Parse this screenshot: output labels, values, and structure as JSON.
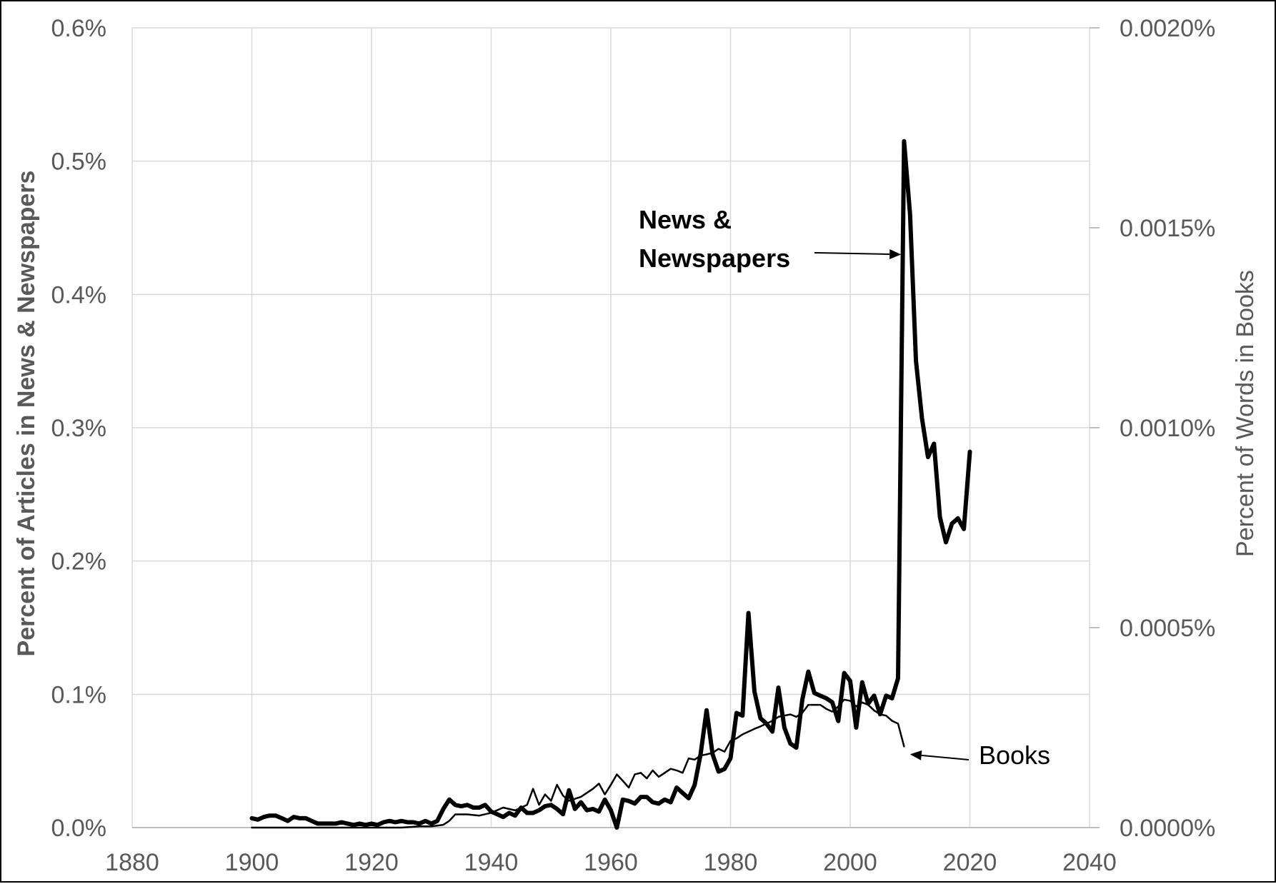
{
  "chart_data": {
    "type": "line",
    "xlim": [
      1880,
      2040
    ],
    "x_ticks": [
      "1880",
      "1900",
      "1920",
      "1940",
      "1960",
      "1980",
      "2000",
      "2020",
      "2040"
    ],
    "x_tick_values": [
      1880,
      1900,
      1920,
      1940,
      1960,
      1980,
      2000,
      2020,
      2040
    ],
    "left_axis": {
      "label": "Percent of Articles in News & Newspapers",
      "ylim": [
        0,
        0.6
      ],
      "ticks": [
        "0.0%",
        "0.1%",
        "0.2%",
        "0.3%",
        "0.4%",
        "0.5%",
        "0.6%"
      ],
      "tick_values": [
        0,
        0.1,
        0.2,
        0.3,
        0.4,
        0.5,
        0.6
      ]
    },
    "right_axis": {
      "label": "Percent of Words in Books",
      "ylim": [
        0,
        0.002
      ],
      "ticks": [
        "0.0000%",
        "0.0005%",
        "0.0010%",
        "0.0015%",
        "0.0020%"
      ],
      "tick_values": [
        0,
        0.0005,
        0.001,
        0.0015,
        0.002
      ]
    },
    "grid": true,
    "series": [
      {
        "name": "News & Newspapers",
        "axis": "left",
        "color": "#000000",
        "style": "thick",
        "points": [
          [
            1900,
            0.007
          ],
          [
            1901,
            0.006
          ],
          [
            1902,
            0.008
          ],
          [
            1903,
            0.009
          ],
          [
            1904,
            0.009
          ],
          [
            1905,
            0.007
          ],
          [
            1906,
            0.005
          ],
          [
            1907,
            0.008
          ],
          [
            1908,
            0.007
          ],
          [
            1909,
            0.007
          ],
          [
            1910,
            0.005
          ],
          [
            1911,
            0.003
          ],
          [
            1912,
            0.003
          ],
          [
            1913,
            0.003
          ],
          [
            1914,
            0.003
          ],
          [
            1915,
            0.004
          ],
          [
            1916,
            0.003
          ],
          [
            1917,
            0.002
          ],
          [
            1918,
            0.003
          ],
          [
            1919,
            0.002
          ],
          [
            1920,
            0.003
          ],
          [
            1921,
            0.002
          ],
          [
            1922,
            0.004
          ],
          [
            1923,
            0.005
          ],
          [
            1924,
            0.004
          ],
          [
            1925,
            0.005
          ],
          [
            1926,
            0.004
          ],
          [
            1927,
            0.004
          ],
          [
            1928,
            0.003
          ],
          [
            1929,
            0.005
          ],
          [
            1930,
            0.003
          ],
          [
            1931,
            0.005
          ],
          [
            1932,
            0.014
          ],
          [
            1933,
            0.021
          ],
          [
            1934,
            0.017
          ],
          [
            1935,
            0.016
          ],
          [
            1936,
            0.017
          ],
          [
            1937,
            0.015
          ],
          [
            1938,
            0.015
          ],
          [
            1939,
            0.017
          ],
          [
            1940,
            0.012
          ],
          [
            1941,
            0.01
          ],
          [
            1942,
            0.008
          ],
          [
            1943,
            0.011
          ],
          [
            1944,
            0.009
          ],
          [
            1945,
            0.015
          ],
          [
            1946,
            0.011
          ],
          [
            1947,
            0.011
          ],
          [
            1948,
            0.013
          ],
          [
            1949,
            0.016
          ],
          [
            1950,
            0.017
          ],
          [
            1951,
            0.014
          ],
          [
            1952,
            0.01
          ],
          [
            1953,
            0.028
          ],
          [
            1954,
            0.014
          ],
          [
            1955,
            0.019
          ],
          [
            1956,
            0.013
          ],
          [
            1957,
            0.014
          ],
          [
            1958,
            0.012
          ],
          [
            1959,
            0.021
          ],
          [
            1960,
            0.013
          ],
          [
            1961,
            0.0
          ],
          [
            1962,
            0.021
          ],
          [
            1963,
            0.02
          ],
          [
            1964,
            0.018
          ],
          [
            1965,
            0.023
          ],
          [
            1966,
            0.023
          ],
          [
            1967,
            0.019
          ],
          [
            1968,
            0.018
          ],
          [
            1969,
            0.021
          ],
          [
            1970,
            0.019
          ],
          [
            1971,
            0.03
          ],
          [
            1972,
            0.026
          ],
          [
            1973,
            0.022
          ],
          [
            1974,
            0.032
          ],
          [
            1975,
            0.055
          ],
          [
            1976,
            0.088
          ],
          [
            1977,
            0.055
          ],
          [
            1978,
            0.042
          ],
          [
            1979,
            0.044
          ],
          [
            1980,
            0.052
          ],
          [
            1981,
            0.086
          ],
          [
            1982,
            0.084
          ],
          [
            1983,
            0.161
          ],
          [
            1984,
            0.102
          ],
          [
            1985,
            0.082
          ],
          [
            1986,
            0.078
          ],
          [
            1987,
            0.072
          ],
          [
            1988,
            0.105
          ],
          [
            1989,
            0.075
          ],
          [
            1990,
            0.063
          ],
          [
            1991,
            0.06
          ],
          [
            1992,
            0.096
          ],
          [
            1993,
            0.117
          ],
          [
            1994,
            0.101
          ],
          [
            1995,
            0.099
          ],
          [
            1996,
            0.097
          ],
          [
            1997,
            0.094
          ],
          [
            1998,
            0.08
          ],
          [
            1999,
            0.116
          ],
          [
            2000,
            0.11
          ],
          [
            2001,
            0.075
          ],
          [
            2002,
            0.109
          ],
          [
            2003,
            0.093
          ],
          [
            2004,
            0.099
          ],
          [
            2005,
            0.085
          ],
          [
            2006,
            0.099
          ],
          [
            2007,
            0.097
          ],
          [
            2008,
            0.112
          ],
          [
            2009,
            0.515
          ],
          [
            2010,
            0.46
          ],
          [
            2011,
            0.35
          ],
          [
            2012,
            0.307
          ],
          [
            2013,
            0.278
          ],
          [
            2014,
            0.288
          ],
          [
            2015,
            0.233
          ],
          [
            2016,
            0.214
          ],
          [
            2017,
            0.228
          ],
          [
            2018,
            0.232
          ],
          [
            2019,
            0.224
          ],
          [
            2020,
            0.282
          ]
        ]
      },
      {
        "name": "Books",
        "axis": "right",
        "color": "#000000",
        "style": "thin",
        "points": [
          [
            1900,
            0.0
          ],
          [
            1905,
            0.0
          ],
          [
            1910,
            0.0
          ],
          [
            1915,
            0.0
          ],
          [
            1920,
            0.0
          ],
          [
            1925,
            0.0
          ],
          [
            1928,
            3e-06
          ],
          [
            1930,
            3e-06
          ],
          [
            1932,
            7e-06
          ],
          [
            1933,
            1.7e-05
          ],
          [
            1934,
            3.3e-05
          ],
          [
            1936,
            3.3e-05
          ],
          [
            1938,
            3e-05
          ],
          [
            1940,
            3.7e-05
          ],
          [
            1942,
            5e-05
          ],
          [
            1944,
            4.3e-05
          ],
          [
            1946,
            5.7e-05
          ],
          [
            1947,
            9.7e-05
          ],
          [
            1948,
            5.7e-05
          ],
          [
            1949,
            8.3e-05
          ],
          [
            1950,
            6.7e-05
          ],
          [
            1951,
            0.000107
          ],
          [
            1952,
            8e-05
          ],
          [
            1953,
            6.7e-05
          ],
          [
            1955,
            7.7e-05
          ],
          [
            1956,
            8.7e-05
          ],
          [
            1957,
            9.7e-05
          ],
          [
            1958,
            0.00011
          ],
          [
            1959,
            8.3e-05
          ],
          [
            1960,
            0.000107
          ],
          [
            1961,
            0.000133
          ],
          [
            1962,
            0.000117
          ],
          [
            1963,
            0.0001
          ],
          [
            1964,
            0.000133
          ],
          [
            1965,
            0.000137
          ],
          [
            1966,
            0.000123
          ],
          [
            1967,
            0.000143
          ],
          [
            1968,
            0.000127
          ],
          [
            1969,
            0.000137
          ],
          [
            1970,
            0.000147
          ],
          [
            1971,
            0.000143
          ],
          [
            1972,
            0.000137
          ],
          [
            1973,
            0.000173
          ],
          [
            1974,
            0.00017
          ],
          [
            1975,
            0.00018
          ],
          [
            1976,
            0.000183
          ],
          [
            1977,
            0.000187
          ],
          [
            1978,
            0.000197
          ],
          [
            1979,
            0.00019
          ],
          [
            1980,
            0.000217
          ],
          [
            1981,
            0.000223
          ],
          [
            1982,
            0.000233
          ],
          [
            1983,
            0.00024
          ],
          [
            1984,
            0.000247
          ],
          [
            1985,
            0.000253
          ],
          [
            1986,
            0.00026
          ],
          [
            1987,
            0.000267
          ],
          [
            1988,
            0.000277
          ],
          [
            1989,
            0.00028
          ],
          [
            1990,
            0.000283
          ],
          [
            1991,
            0.000277
          ],
          [
            1992,
            0.000287
          ],
          [
            1993,
            0.000307
          ],
          [
            1994,
            0.000307
          ],
          [
            1995,
            0.000307
          ],
          [
            1996,
            0.000297
          ],
          [
            1997,
            0.00029
          ],
          [
            1998,
            0.000303
          ],
          [
            1999,
            0.00032
          ],
          [
            2000,
            0.000317
          ],
          [
            2001,
            0.000303
          ],
          [
            2002,
            0.000313
          ],
          [
            2003,
            0.000307
          ],
          [
            2004,
            0.000293
          ],
          [
            2005,
            0.000283
          ],
          [
            2006,
            0.00028
          ],
          [
            2007,
            0.000267
          ],
          [
            2008,
            0.00026
          ],
          [
            2009,
            0.000203
          ]
        ]
      }
    ],
    "annotations": [
      {
        "text_lines": [
          "News &",
          "Newspapers"
        ],
        "points_to": [
          2008.5,
          0.43
        ],
        "series": "News & Newspapers"
      },
      {
        "text_lines": [
          "Books"
        ],
        "points_to": [
          2010,
          0.055
        ],
        "series": "Books"
      }
    ]
  }
}
